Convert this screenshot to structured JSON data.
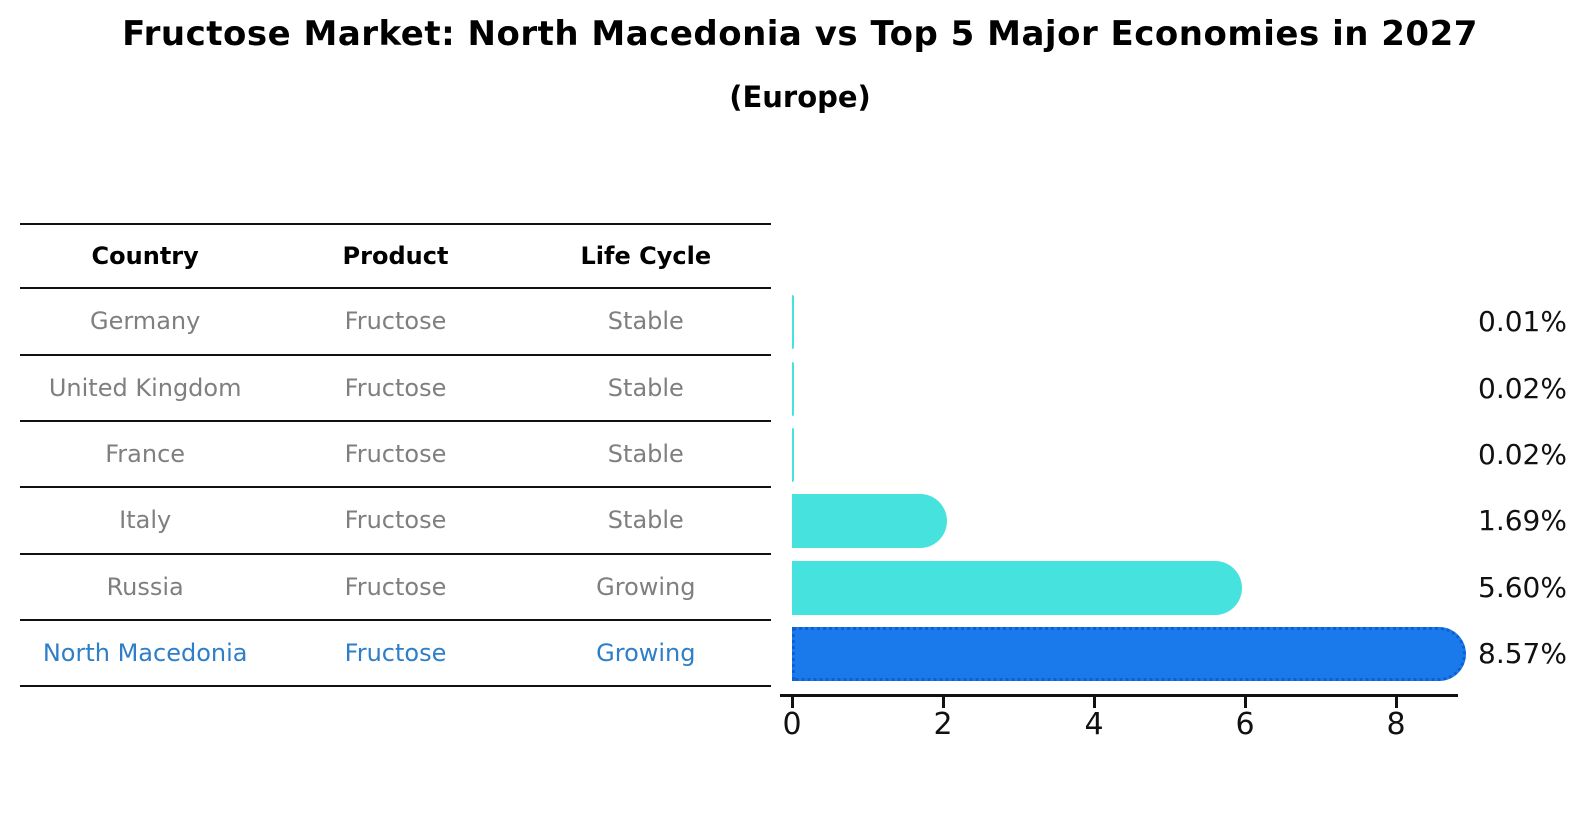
{
  "title": "Fructose Market: North Macedonia vs Top 5 Major Economies in 2027",
  "subtitle": "(Europe)",
  "table": {
    "headers": [
      "Country",
      "Product",
      "Life Cycle"
    ],
    "rows": [
      {
        "country": "Germany",
        "product": "Fructose",
        "life_cycle": "Stable",
        "highlight": false
      },
      {
        "country": "United Kingdom",
        "product": "Fructose",
        "life_cycle": "Stable",
        "highlight": false
      },
      {
        "country": "France",
        "product": "Fructose",
        "life_cycle": "Stable",
        "highlight": false
      },
      {
        "country": "Italy",
        "product": "Fructose",
        "life_cycle": "Stable",
        "highlight": false
      },
      {
        "country": "Russia",
        "product": "Fructose",
        "life_cycle": "Growing",
        "highlight": false
      },
      {
        "country": "North Macedonia",
        "product": "Fructose",
        "life_cycle": "Growing",
        "highlight": true
      }
    ]
  },
  "chart_data": {
    "type": "bar",
    "orientation": "horizontal",
    "title": "Fructose Market: North Macedonia vs Top 5 Major Economies in 2027",
    "subtitle": "(Europe)",
    "categories": [
      "Germany",
      "United Kingdom",
      "France",
      "Italy",
      "Russia",
      "North Macedonia"
    ],
    "values": [
      0.01,
      0.02,
      0.02,
      1.69,
      5.6,
      8.57
    ],
    "value_labels": [
      "0.01%",
      "0.02%",
      "0.02%",
      "1.69%",
      "5.60%",
      "8.57%"
    ],
    "x_tick_labels": [
      "0",
      "2",
      "4",
      "6",
      "8"
    ],
    "x_tick_values": [
      0,
      2,
      4,
      6,
      8
    ],
    "xlim": [
      0,
      8.85
    ],
    "grid": false,
    "legend": null,
    "highlight_index": 5,
    "colors": {
      "bar_base": "#46E3DE",
      "bar_highlight": "#1A7AEB",
      "bar_highlight_edge": "#0D5FD3",
      "row_text": "#7F7F7F",
      "highlight_text": "#2E7EC8",
      "axis": "#111111",
      "value_text": "#111111"
    }
  }
}
